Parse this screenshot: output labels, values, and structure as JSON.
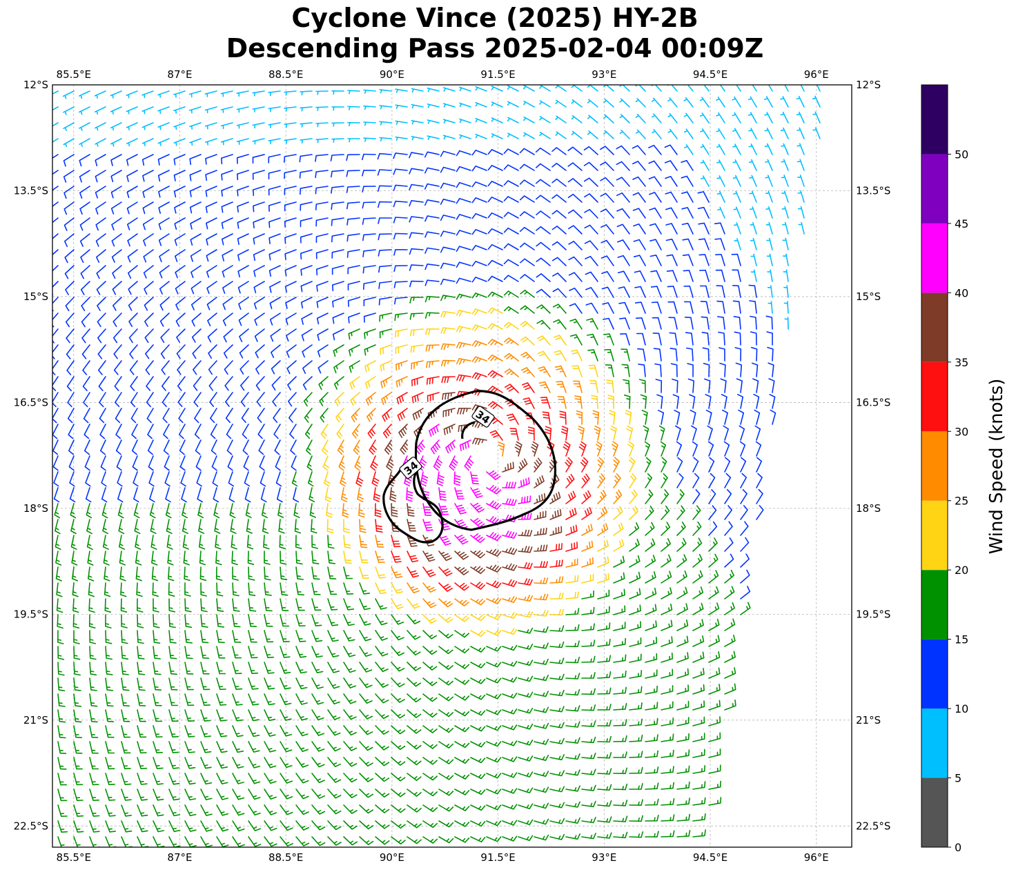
{
  "title": {
    "line1": "Cyclone Vince (2025) HY-2B",
    "line2": "Descending Pass 2025-02-04 00:09Z"
  },
  "map": {
    "lon_range": [
      85.2,
      96.5
    ],
    "lat_range": [
      -22.8,
      -12.0
    ],
    "lon_ticks": [
      {
        "value": 85.5,
        "label": "85.5°E"
      },
      {
        "value": 87,
        "label": "87°E"
      },
      {
        "value": 88.5,
        "label": "88.5°E"
      },
      {
        "value": 90,
        "label": "90°E"
      },
      {
        "value": 91.5,
        "label": "91.5°E"
      },
      {
        "value": 93,
        "label": "93°E"
      },
      {
        "value": 94.5,
        "label": "94.5°E"
      },
      {
        "value": 96,
        "label": "96°E"
      }
    ],
    "lat_ticks": [
      {
        "value": -12,
        "label": "12°S"
      },
      {
        "value": -13.5,
        "label": "13.5°S"
      },
      {
        "value": -15,
        "label": "15°S"
      },
      {
        "value": -16.5,
        "label": "16.5°S"
      },
      {
        "value": -18,
        "label": "18°S"
      },
      {
        "value": -19.5,
        "label": "19.5°S"
      },
      {
        "value": -21,
        "label": "21°S"
      },
      {
        "value": -22.5,
        "label": "22.5°S"
      }
    ],
    "grid": true,
    "cyclone_center": {
      "lon": 91.4,
      "lat": -17.3
    },
    "swath_east_edge": [
      [
        96.2,
        -12.0
      ],
      [
        94.4,
        -22.8
      ]
    ],
    "contour_label": "34"
  },
  "colorbar": {
    "label": "Wind Speed (knots)",
    "bins": [
      {
        "min": 0,
        "max": 5,
        "color": "#555555"
      },
      {
        "min": 5,
        "max": 10,
        "color": "#00bfff"
      },
      {
        "min": 10,
        "max": 15,
        "color": "#0033ff"
      },
      {
        "min": 15,
        "max": 20,
        "color": "#009100"
      },
      {
        "min": 20,
        "max": 25,
        "color": "#ffd414"
      },
      {
        "min": 25,
        "max": 30,
        "color": "#ff8c00"
      },
      {
        "min": 30,
        "max": 35,
        "color": "#ff1010"
      },
      {
        "min": 35,
        "max": 40,
        "color": "#7e3b28"
      },
      {
        "min": 40,
        "max": 45,
        "color": "#ff00ff"
      },
      {
        "min": 45,
        "max": 50,
        "color": "#8000bf"
      },
      {
        "min": 50,
        "max": 55,
        "color": "#2d0062"
      }
    ],
    "tick_labels": [
      "0",
      "5",
      "10",
      "15",
      "20",
      "25",
      "30",
      "35",
      "40",
      "45",
      "50"
    ]
  }
}
